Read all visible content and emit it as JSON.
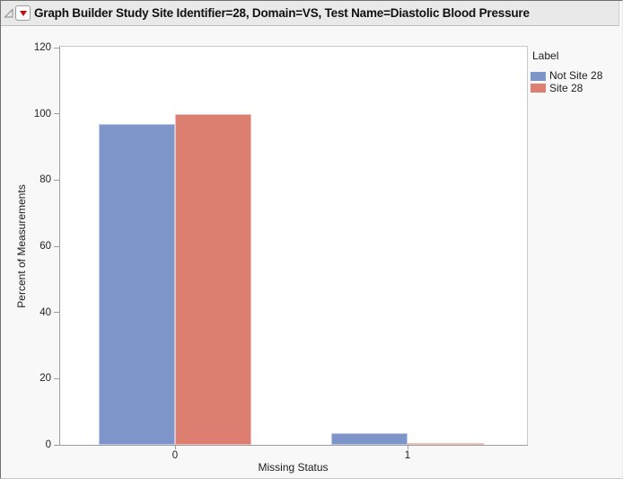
{
  "title_bar": {
    "title": "Graph Builder Study Site Identifier=28, Domain=VS, Test Name=Diastolic Blood Pressure",
    "disclosure_icon": "open-disclosure-triangle",
    "menu_icon": "red-triangle-menu"
  },
  "colors": {
    "not_site_28": "#7d95c9",
    "site_28": "#dd7f70",
    "axis_line": "#9d9d9d",
    "plot_border": "#c9c9c9",
    "title_bar_bg": "#e9e9e9",
    "red_triangle": "#c40b0b"
  },
  "legend": {
    "title": "Label",
    "items": [
      {
        "label": "Not Site 28",
        "color": "#7d95c9"
      },
      {
        "label": "Site 28",
        "color": "#dd7f70"
      }
    ]
  },
  "chart_data": {
    "type": "bar",
    "title": "",
    "xlabel": "Missing Status",
    "ylabel": "Percent of Measurements",
    "categories": [
      "0",
      "1"
    ],
    "series": [
      {
        "name": "Not Site 28",
        "color": "#7d95c9",
        "values": [
          96.8,
          3.4
        ]
      },
      {
        "name": "Site 28",
        "color": "#dd7f70",
        "values": [
          99.8,
          0.6
        ]
      }
    ],
    "ylim": [
      0,
      120
    ],
    "yticks": [
      0,
      20,
      40,
      60,
      80,
      100,
      120
    ],
    "grid": false,
    "legend_position": "right",
    "legend_title": "Label"
  }
}
